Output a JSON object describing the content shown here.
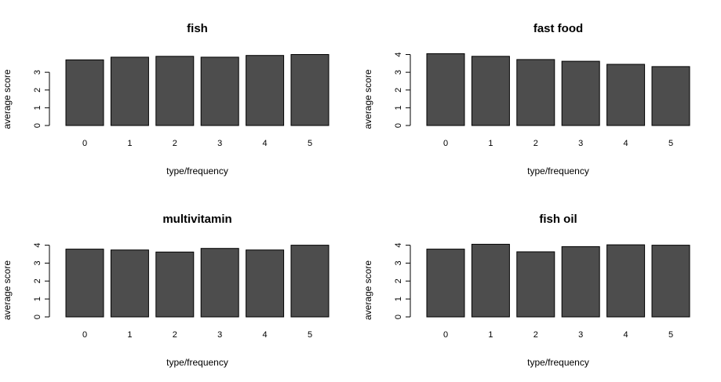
{
  "chart_data": [
    {
      "type": "bar",
      "title": "fish",
      "xlabel": "type/frequency",
      "ylabel": "average score",
      "categories": [
        "0",
        "1",
        "2",
        "3",
        "4",
        "5"
      ],
      "values": [
        3.7,
        3.85,
        3.9,
        3.85,
        3.95,
        4.0
      ],
      "yticks": [
        "0",
        "1",
        "2",
        "3"
      ],
      "ylim": [
        0,
        4.2
      ],
      "bar_color": "#4d4d4d"
    },
    {
      "type": "bar",
      "title": "fast food",
      "xlabel": "type/frequency",
      "ylabel": "average score",
      "categories": [
        "0",
        "1",
        "2",
        "3",
        "4",
        "5"
      ],
      "values": [
        4.05,
        3.9,
        3.72,
        3.62,
        3.45,
        3.32
      ],
      "yticks": [
        "0",
        "1",
        "2",
        "3",
        "4"
      ],
      "ylim": [
        0,
        4.2
      ],
      "bar_color": "#4d4d4d"
    },
    {
      "type": "bar",
      "title": "multivitamin",
      "xlabel": "type/frequency",
      "ylabel": "average score",
      "categories": [
        "0",
        "1",
        "2",
        "3",
        "4",
        "5"
      ],
      "values": [
        3.78,
        3.73,
        3.62,
        3.82,
        3.73,
        4.0
      ],
      "yticks": [
        "0",
        "1",
        "2",
        "3",
        "4"
      ],
      "ylim": [
        0,
        4.2
      ],
      "bar_color": "#4d4d4d"
    },
    {
      "type": "bar",
      "title": "fish oil",
      "xlabel": "type/frequency",
      "ylabel": "average score",
      "categories": [
        "0",
        "1",
        "2",
        "3",
        "4",
        "5"
      ],
      "values": [
        3.78,
        4.05,
        3.63,
        3.92,
        4.02,
        4.0
      ],
      "yticks": [
        "0",
        "1",
        "2",
        "3",
        "4"
      ],
      "ylim": [
        0,
        4.2
      ],
      "bar_color": "#4d4d4d"
    }
  ]
}
